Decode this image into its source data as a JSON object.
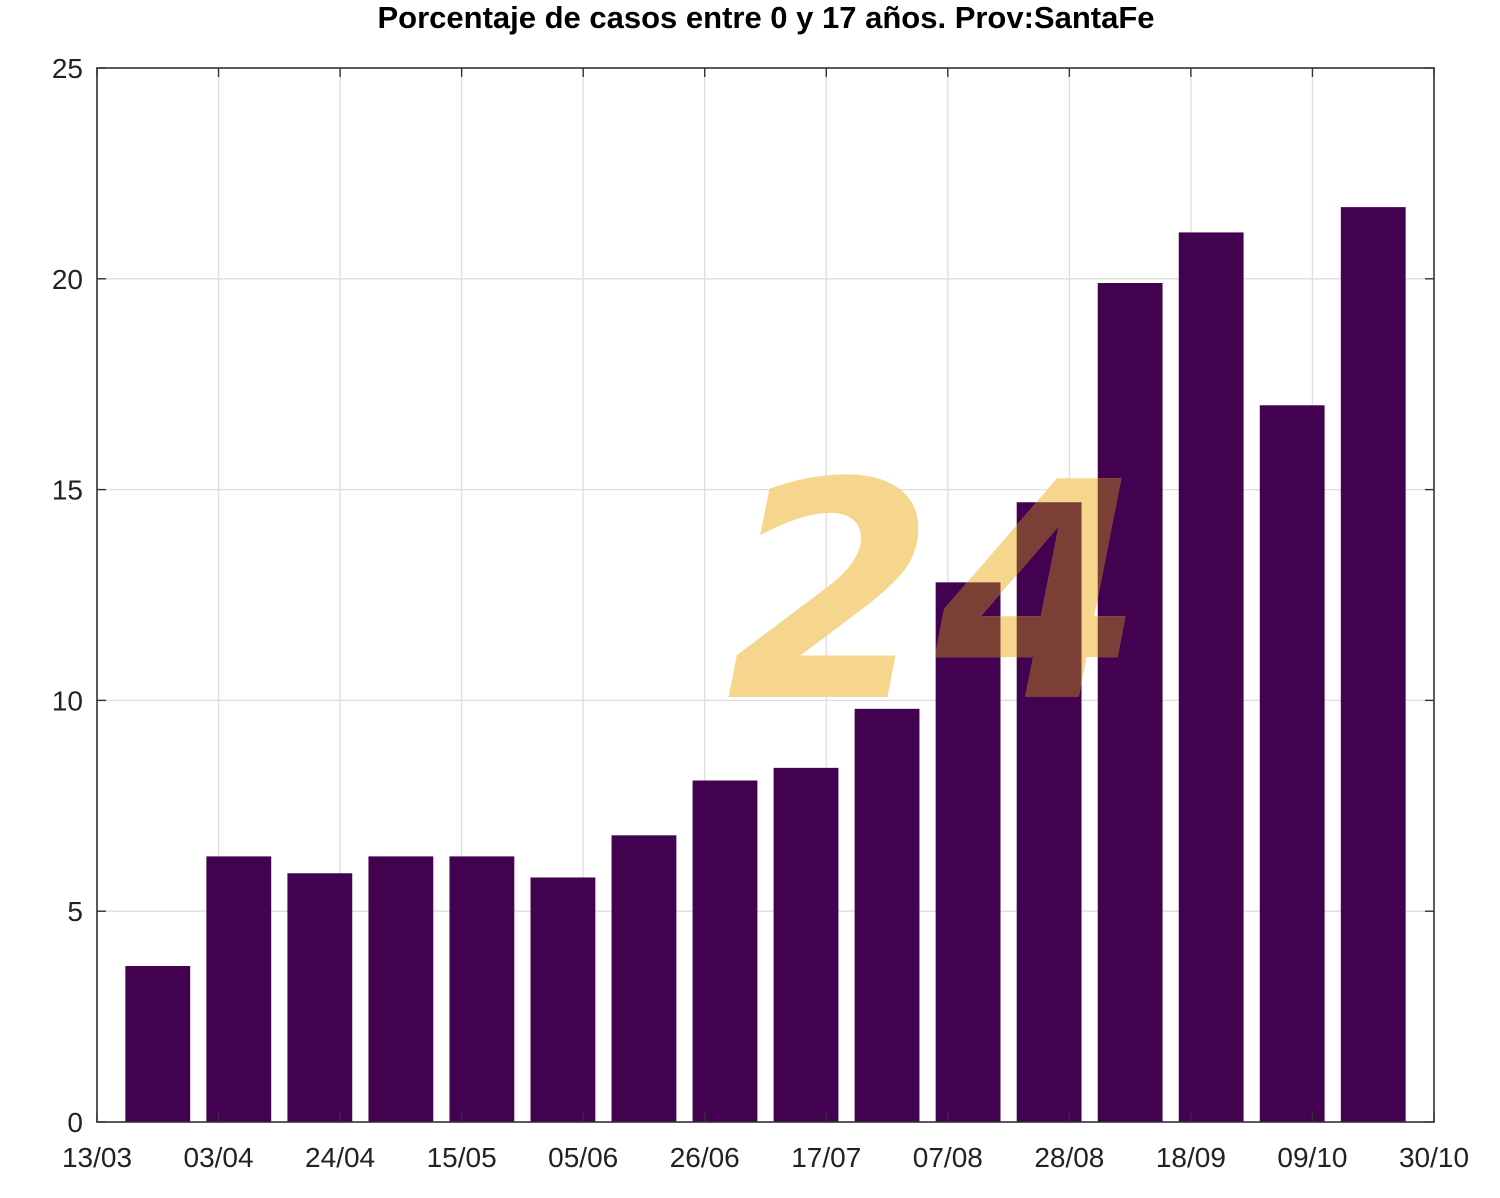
{
  "colors": {
    "bar": "#43024f",
    "watermark_light": "#f6d58d",
    "watermark_dark": "#7b3f36"
  },
  "watermark": {
    "text": "24"
  },
  "chart_data": {
    "type": "bar",
    "title": "Porcentaje de casos entre 0 y 17 años. Prov:SantaFe",
    "xlabel": "",
    "ylabel": "",
    "ylim": [
      0,
      25
    ],
    "yticks": [
      0,
      5,
      10,
      15,
      20,
      25
    ],
    "grid": true,
    "legend": "none",
    "x_tick_labels": [
      {
        "label": "13/03",
        "index": 0
      },
      {
        "label": "03/04",
        "index": 3
      },
      {
        "label": "24/04",
        "index": 6
      },
      {
        "label": "15/05",
        "index": 9
      },
      {
        "label": "05/06",
        "index": 12
      },
      {
        "label": "26/06",
        "index": 15
      },
      {
        "label": "17/07",
        "index": 18
      },
      {
        "label": "07/08",
        "index": 21
      },
      {
        "label": "28/08",
        "index": 24
      },
      {
        "label": "18/09",
        "index": 27
      },
      {
        "label": "09/10",
        "index": 30
      },
      {
        "label": "30/10",
        "index": 33
      }
    ],
    "x_index_range": [
      0,
      33
    ],
    "bar_positions": [
      1.5,
      3.5,
      5.5,
      7.5,
      9.5,
      11.5,
      13.5,
      15.5,
      17.5,
      19.5,
      21.5,
      23.5,
      25.5,
      27.5,
      29.5,
      31.5
    ],
    "values": [
      3.7,
      6.3,
      5.9,
      6.3,
      6.3,
      5.8,
      6.8,
      8.1,
      8.4,
      9.8,
      12.8,
      14.7,
      19.9,
      21.1,
      17.0,
      21.7
    ]
  }
}
